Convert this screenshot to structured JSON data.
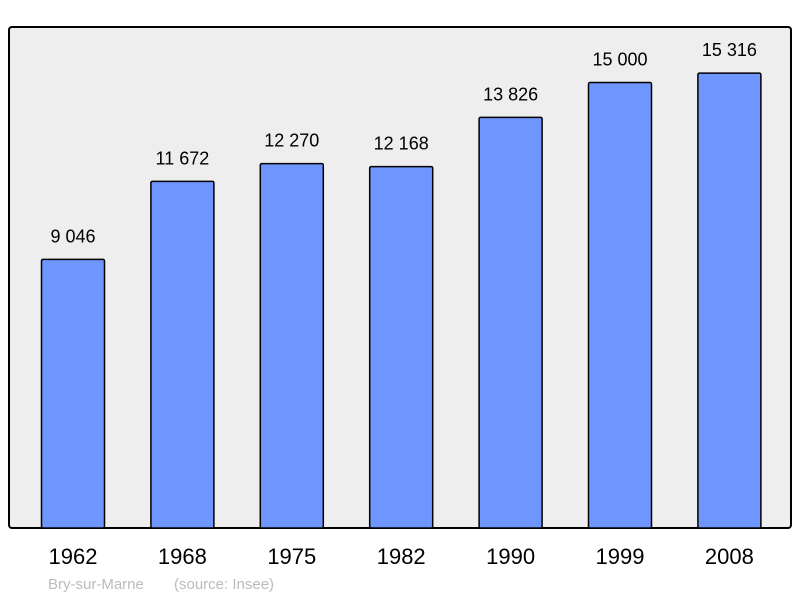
{
  "chart_data": {
    "type": "bar",
    "title": "",
    "xlabel": "",
    "ylabel": "",
    "categories": [
      "1962",
      "1968",
      "1975",
      "1982",
      "1990",
      "1999",
      "2008"
    ],
    "values": [
      9046,
      11672,
      12270,
      12168,
      13826,
      15000,
      15316
    ],
    "value_labels": [
      "9 046",
      "11 672",
      "12 270",
      "12 168",
      "13 826",
      "15 000",
      "15 316"
    ],
    "ylim": [
      0,
      16870
    ],
    "grid": false,
    "colors": {
      "bar": "#6f96ff",
      "plot_background": "#eeeeee",
      "outline": "#000000",
      "footer": "#bbbbbb"
    }
  },
  "footer": {
    "place": "Bry-sur-Marne",
    "source": "(source: Insee)"
  }
}
